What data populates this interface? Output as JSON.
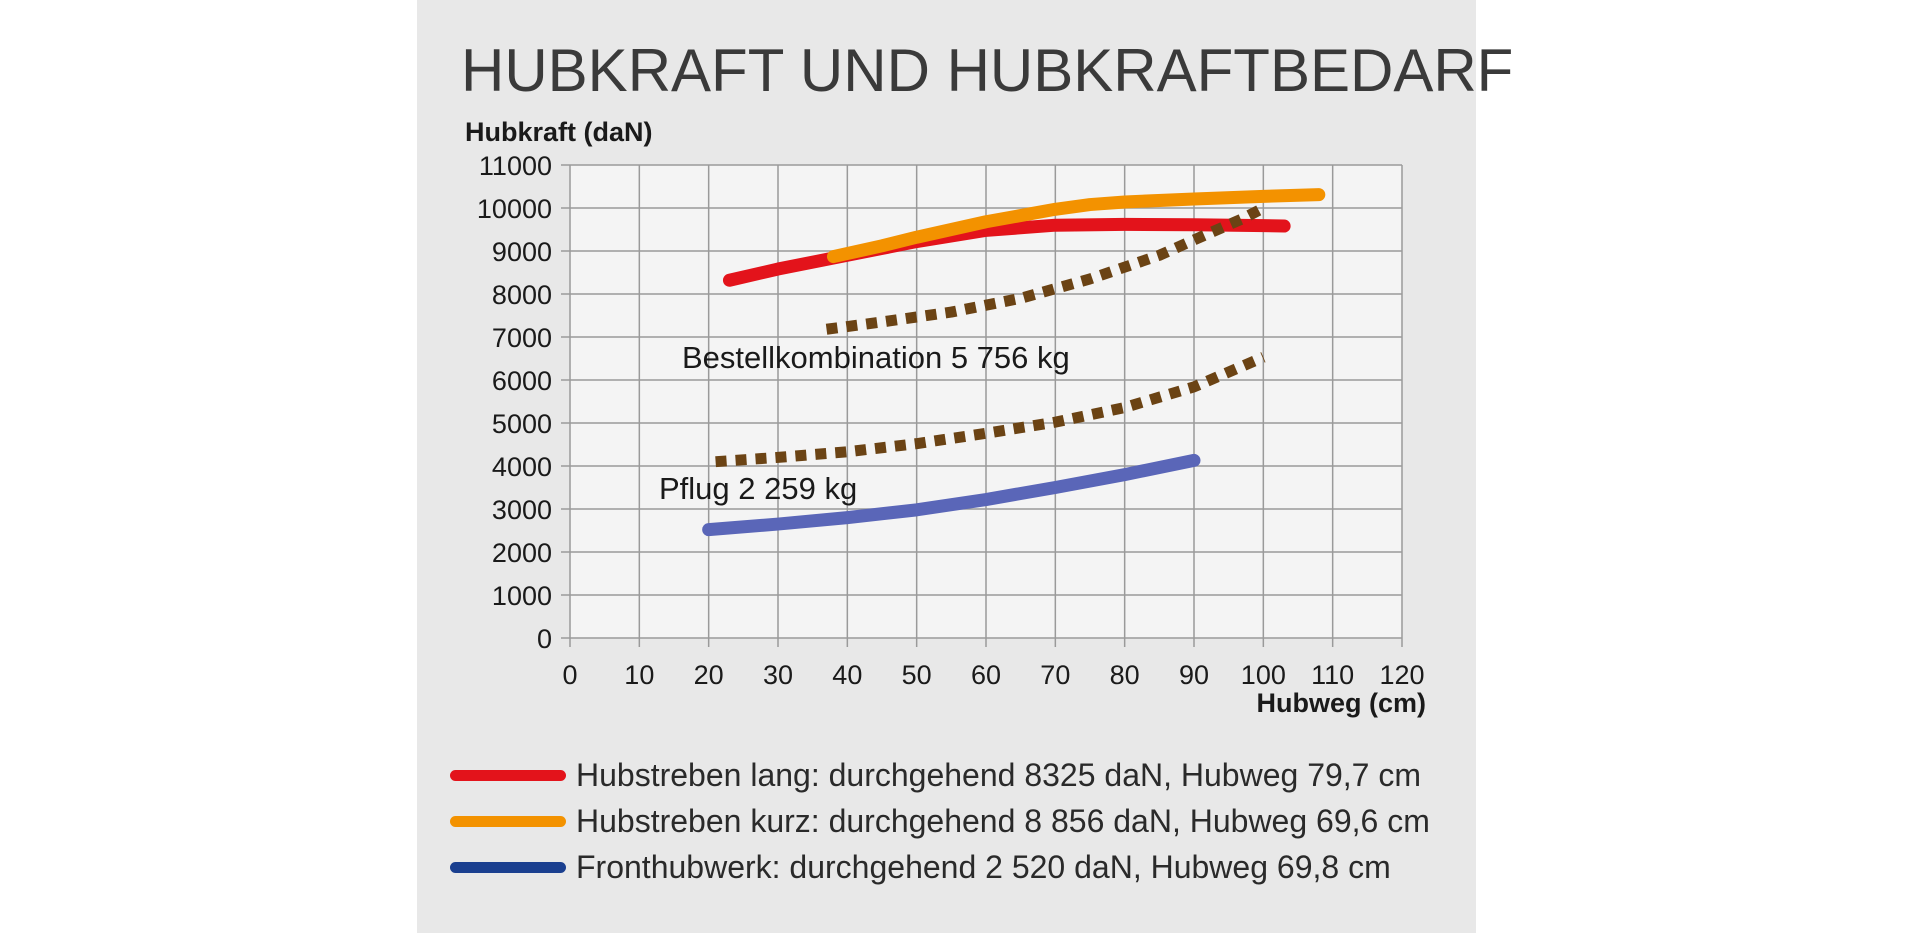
{
  "title": "HUBKRAFT UND HUBKRAFTBEDARF",
  "colors": {
    "background": "#e8e8e8",
    "plot_background": "#f4f4f4",
    "grid": "#9a9a9a",
    "hubstreben_lang": "#e3131b",
    "hubstreben_kurz": "#f39200",
    "fronthubwerk_line": "#5a66b8",
    "fronthubwerk_legend": "#1a3f8f",
    "bedarf": "#6b4314"
  },
  "chart_data": {
    "type": "line",
    "title": "HUBKRAFT UND HUBKRAFTBEDARF",
    "xlabel": "Hubweg (cm)",
    "ylabel": "Hubkraft (daN)",
    "xlim": [
      0,
      120
    ],
    "ylim": [
      0,
      11000
    ],
    "x_ticks": [
      "0",
      "10",
      "20",
      "30",
      "40",
      "50",
      "60",
      "70",
      "80",
      "90",
      "100",
      "110",
      "120"
    ],
    "y_ticks": [
      "0",
      "1000",
      "2000",
      "3000",
      "4000",
      "5000",
      "6000",
      "7000",
      "8000",
      "9000",
      "10000",
      "11000"
    ],
    "grid": true,
    "legend_position": "bottom",
    "series": [
      {
        "name": "Hubstreben lang: durchgehend 8325 daN, Hubweg 79,7 cm",
        "style": "solid",
        "color": "#e3131b",
        "points": [
          [
            23,
            8320
          ],
          [
            30,
            8580
          ],
          [
            40,
            8900
          ],
          [
            50,
            9220
          ],
          [
            60,
            9480
          ],
          [
            70,
            9600
          ],
          [
            80,
            9620
          ],
          [
            90,
            9610
          ],
          [
            100,
            9590
          ],
          [
            103,
            9580
          ]
        ]
      },
      {
        "name": "Hubstreben kurz: durchgehend 8 856 daN, Hubweg 69,6 cm",
        "style": "solid",
        "color": "#f39200",
        "points": [
          [
            38,
            8870
          ],
          [
            45,
            9120
          ],
          [
            50,
            9320
          ],
          [
            60,
            9680
          ],
          [
            70,
            9970
          ],
          [
            75,
            10080
          ],
          [
            80,
            10140
          ],
          [
            90,
            10210
          ],
          [
            100,
            10270
          ],
          [
            108,
            10310
          ]
        ]
      },
      {
        "name": "Fronthubwerk: durchgehend 2520 daN, Hubweg 69,8 cm",
        "style": "solid",
        "color": "#5a66b8",
        "points": [
          [
            20,
            2520
          ],
          [
            30,
            2650
          ],
          [
            40,
            2800
          ],
          [
            50,
            2980
          ],
          [
            60,
            3220
          ],
          [
            70,
            3500
          ],
          [
            80,
            3800
          ],
          [
            90,
            4130
          ]
        ]
      },
      {
        "label": "Bestellkombination 5 756 kg",
        "style": "dotted",
        "color": "#6b4314",
        "points": [
          [
            37,
            7180
          ],
          [
            45,
            7350
          ],
          [
            55,
            7580
          ],
          [
            65,
            7900
          ],
          [
            75,
            8350
          ],
          [
            85,
            8900
          ],
          [
            92,
            9400
          ],
          [
            97,
            9750
          ],
          [
            100,
            10000
          ]
        ]
      },
      {
        "label": "Pflug 2 259 kg",
        "style": "dotted",
        "color": "#6b4314",
        "points": [
          [
            21,
            4100
          ],
          [
            30,
            4200
          ],
          [
            40,
            4330
          ],
          [
            50,
            4520
          ],
          [
            60,
            4760
          ],
          [
            70,
            5020
          ],
          [
            80,
            5360
          ],
          [
            90,
            5840
          ],
          [
            100,
            6530
          ]
        ]
      }
    ],
    "annotations": [
      "Bestellkombination 5 756 kg",
      "Pflug 2 259 kg"
    ]
  },
  "legend": [
    {
      "label": "Hubstreben lang: durchgehend 8325 daN, Hubweg 79,7 cm",
      "color": "#e3131b"
    },
    {
      "label": "Hubstreben kurz: durchgehend 8 856 daN, Hubweg 69,6 cm",
      "color": "#f39200"
    },
    {
      "label": "Fronthubwerk:  durchgehend  2 520  daN,  Hubweg  69,8  cm",
      "color": "#1a3f8f"
    }
  ]
}
